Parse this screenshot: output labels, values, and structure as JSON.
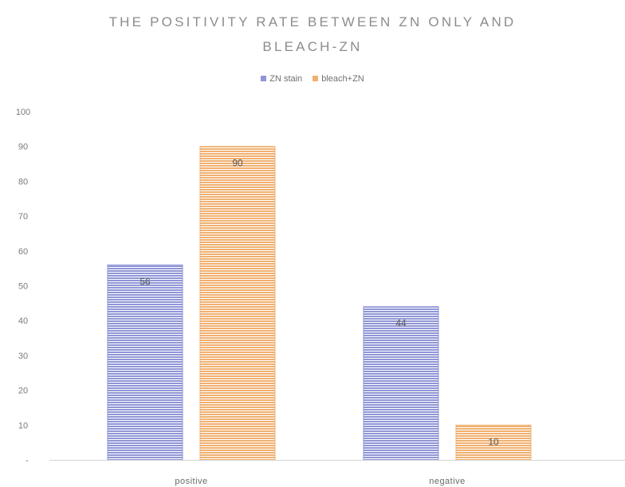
{
  "chart_data": {
    "type": "bar",
    "title_lines": [
      "THE POSITIVITY RATE BETWEEN ZN ONLY AND",
      "BLEACH-ZN"
    ],
    "categories": [
      "positive",
      "negative"
    ],
    "series": [
      {
        "name": "ZN stain",
        "values": [
          56,
          44
        ],
        "color": "#8f95d6"
      },
      {
        "name": "bleach+ZN",
        "values": [
          90,
          10
        ],
        "color": "#f0b070"
      }
    ],
    "ylim": [
      0,
      100
    ],
    "yticks": [
      100,
      90,
      80,
      70,
      60,
      50,
      40,
      30,
      20,
      10
    ],
    "zero_tick_label": "-",
    "legend_position": "top",
    "grid": false,
    "data_labels": true
  }
}
